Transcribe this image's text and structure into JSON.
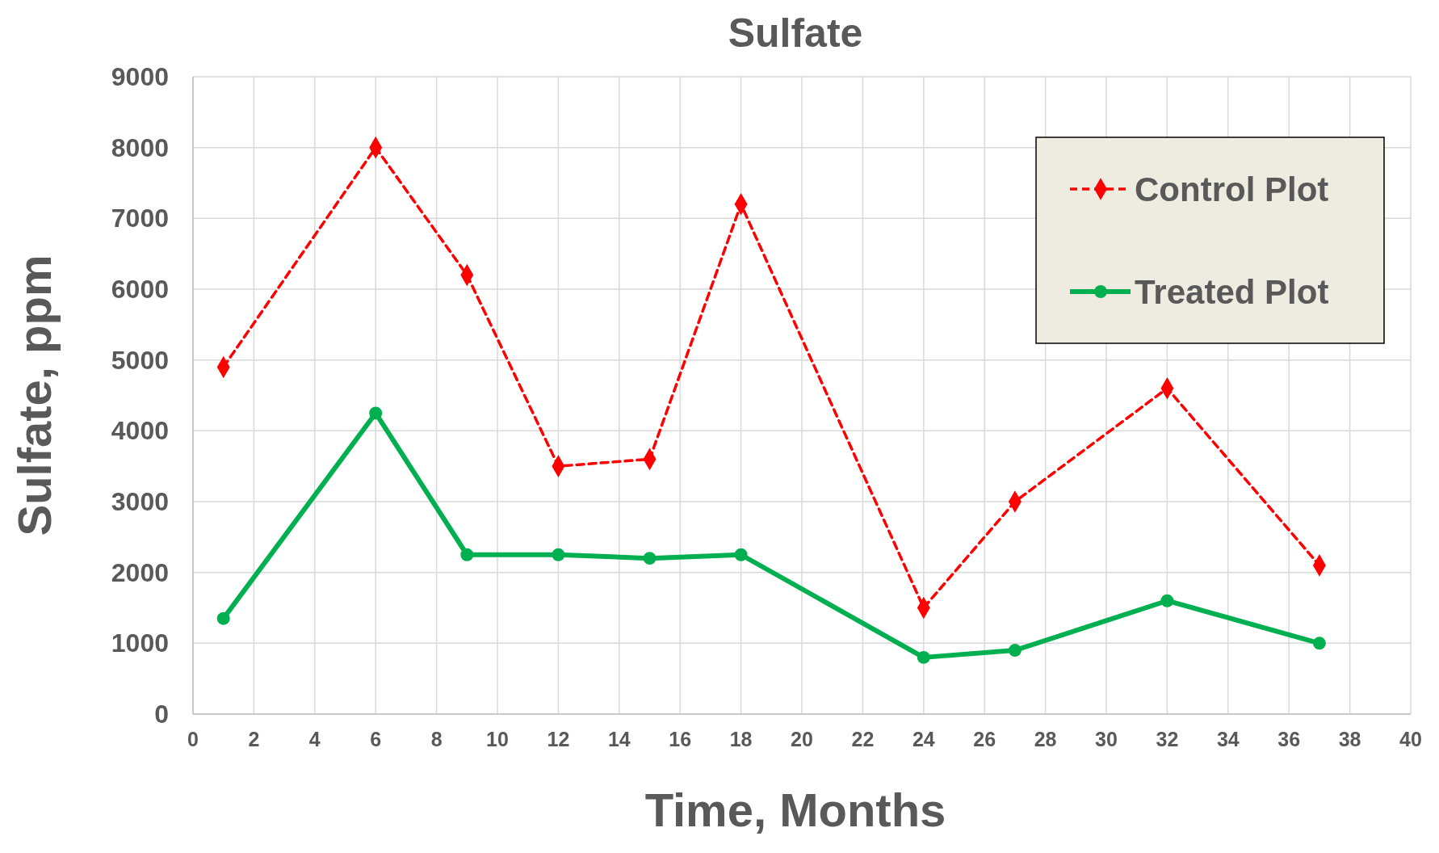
{
  "chart_data": {
    "type": "line",
    "title": "Sulfate",
    "xlabel": "Time, Months",
    "ylabel": "Sulfate, ppm",
    "x": [
      1,
      6,
      9,
      12,
      15,
      18,
      24,
      27,
      32,
      37
    ],
    "series": [
      {
        "name": "Control Plot",
        "color": "#ff0000",
        "values": [
          4900,
          8000,
          6200,
          3500,
          3600,
          7200,
          1500,
          3000,
          4600,
          2100
        ],
        "marker": "diamond",
        "line_style": "dashed"
      },
      {
        "name": "Treated Plot",
        "color": "#00b050",
        "values": [
          1350,
          4250,
          2250,
          2250,
          2200,
          2250,
          800,
          900,
          1600,
          1000
        ],
        "marker": "circle",
        "line_style": "solid"
      }
    ],
    "xlim": [
      0,
      40
    ],
    "xticks": [
      0,
      2,
      4,
      6,
      8,
      10,
      12,
      14,
      16,
      18,
      20,
      22,
      24,
      26,
      28,
      30,
      32,
      34,
      36,
      38,
      40
    ],
    "ylim": [
      0,
      9000
    ],
    "yticks": [
      0,
      1000,
      2000,
      3000,
      4000,
      5000,
      6000,
      7000,
      8000,
      9000
    ],
    "grid": true,
    "legend": "top right"
  }
}
